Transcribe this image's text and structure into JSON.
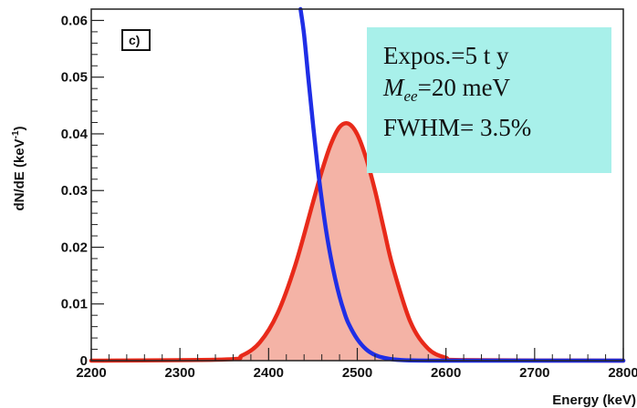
{
  "chart_data": {
    "type": "line",
    "title": "",
    "xlabel": "Energy (keV)",
    "ylabel": "dN/dE (keV",
    "ylabel_sup": "-1",
    "ylabel_end": ")",
    "xlim": [
      2200,
      2800
    ],
    "ylim": [
      0,
      0.062
    ],
    "x_ticks": [
      2200,
      2300,
      2400,
      2500,
      2600,
      2700,
      2800
    ],
    "x_tick_labels": [
      "2200",
      "2300",
      "2400",
      "2500",
      "2600",
      "2700",
      "2800"
    ],
    "y_ticks": [
      0,
      0.01,
      0.02,
      0.03,
      0.04,
      0.05,
      0.06
    ],
    "y_tick_labels": [
      "0",
      "0.01",
      "0.02",
      "0.03",
      "0.04",
      "0.05",
      "0.06"
    ],
    "panel_label": "c)",
    "series": [
      {
        "color": "#e82a1a",
        "fill": "#f4b3a6",
        "x": [
          2200,
          2350,
          2370,
          2390,
          2410,
          2430,
          2450,
          2460,
          2470,
          2480,
          2490,
          2500,
          2510,
          2520,
          2530,
          2540,
          2560,
          2580,
          2600,
          2620,
          2800
        ],
        "y": [
          0,
          0.0002,
          0.0009,
          0.0032,
          0.0083,
          0.0168,
          0.0279,
          0.0334,
          0.0381,
          0.0412,
          0.0418,
          0.0399,
          0.0357,
          0.03,
          0.0232,
          0.0166,
          0.0068,
          0.0021,
          0.0005,
          0.0001,
          0
        ]
      },
      {
        "color": "#1f2ee6",
        "x": [
          2436,
          2440,
          2445,
          2450,
          2455,
          2460,
          2465,
          2470,
          2475,
          2480,
          2485,
          2490,
          2500,
          2510,
          2520,
          2530,
          2550,
          2600,
          2800
        ],
        "y": [
          0.062,
          0.0575,
          0.0495,
          0.0418,
          0.0345,
          0.0283,
          0.0228,
          0.0183,
          0.0145,
          0.0113,
          0.0087,
          0.0066,
          0.0038,
          0.002,
          0.001,
          0.0005,
          0.0001,
          0,
          0
        ]
      }
    ]
  },
  "info_box": {
    "line1": "Expos.=5 t y",
    "line2_m": "M",
    "line2_sub": "ee",
    "line2_rest": "=20 meV",
    "line3": "FWHM= 3.5%"
  }
}
